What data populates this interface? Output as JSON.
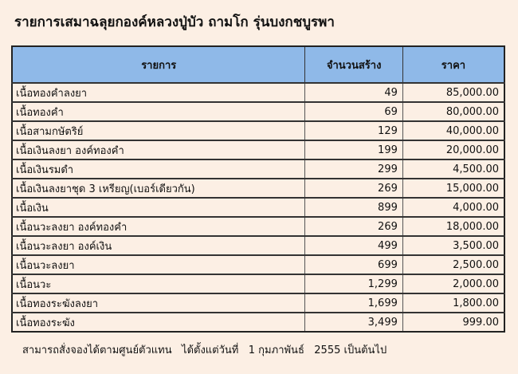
{
  "title": "รายการเสมาฉลุยกองค์หลวงปู่บัว ถามโก รุ่นบงกชบูรพา",
  "headers": {
    "item": "รายการ",
    "quantity": "จำนวนสร้าง",
    "price": "ราคา"
  },
  "rows": [
    {
      "item": "เนื้อทองคำลงยา",
      "quantity": "49",
      "price": "85,000.00"
    },
    {
      "item": "เนื้อทองคำ",
      "quantity": "69",
      "price": "80,000.00"
    },
    {
      "item": "เนื้อสามกษัตริย์",
      "quantity": "129",
      "price": "40,000.00"
    },
    {
      "item": "เนื้อเงินลงยา   องค์ทองคำ",
      "quantity": "199",
      "price": "20,000.00"
    },
    {
      "item": "เนื้อเงินรมดำ",
      "quantity": "299",
      "price": "4,500.00"
    },
    {
      "item": "เนื้อเงินลงยาชุด   3 เหรียญ(เบอร์เดียวกัน)",
      "quantity": "269",
      "price": "15,000.00"
    },
    {
      "item": "เนื้อเงิน",
      "quantity": "899",
      "price": "4,000.00"
    },
    {
      "item": "เนื้อนวะลงยา   องค์ทองคำ",
      "quantity": "269",
      "price": "18,000.00"
    },
    {
      "item": "เนื้อนวะลงยา   องค์เงิน",
      "quantity": "499",
      "price": "3,500.00"
    },
    {
      "item": "เนื้อนวะลงยา",
      "quantity": "699",
      "price": "2,500.00"
    },
    {
      "item": "เนื้อนวะ",
      "quantity": "1,299",
      "price": "2,000.00"
    },
    {
      "item": "เนื้อทองระฆังลงยา",
      "quantity": "1,699",
      "price": "1,800.00"
    },
    {
      "item": "เนื้อทองระฆัง",
      "quantity": "3,499",
      "price": "999.00"
    }
  ],
  "footer": "สามารถสั่งจองได้ตามศูนย์ตัวแทน   ได้ตั้งแต่วันที่   1 กุมภาพันธ์   2555 เป็นต้นไป",
  "colors": {
    "header_bg": "#8fb9e8",
    "page_bg": "#fcefe4"
  }
}
